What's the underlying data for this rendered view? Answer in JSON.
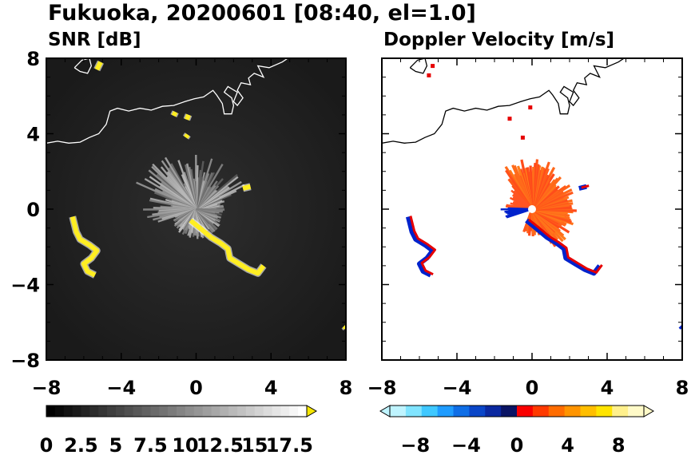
{
  "figure": {
    "title": "Fukuoka, 20200601 [08:40, el=1.0]"
  },
  "chart_data": [
    {
      "type": "heatmap",
      "title": "SNR [dB]",
      "xlim": [
        -8,
        8
      ],
      "ylim": [
        -8,
        8
      ],
      "x_ticks": [
        -8,
        -4,
        0,
        4,
        8
      ],
      "y_ticks": [
        -8,
        -4,
        0,
        4,
        8
      ],
      "x_tick_labels": [
        "−8",
        "−4",
        "0",
        "4",
        "8"
      ],
      "y_tick_labels": [
        "8",
        "4",
        "0",
        "−4",
        "−8"
      ],
      "background_color": "#222222",
      "echo_color": "#ffee22",
      "colorbar": {
        "min": 0,
        "max": 18.75,
        "extend": "max",
        "tick_values": [
          0,
          2.5,
          5,
          7.5,
          10,
          12.5,
          15,
          17.5
        ],
        "tick_labels": [
          "0",
          "2.5",
          "5",
          "7.5",
          "10",
          "12.5",
          "15",
          "17.5"
        ],
        "color_low": "#000000",
        "color_high": "#ffffff",
        "extend_color": "#f5e600"
      }
    },
    {
      "type": "heatmap",
      "title": "Doppler Velocity [m/s]",
      "xlim": [
        -8,
        8
      ],
      "ylim": [
        -8,
        8
      ],
      "x_ticks": [
        -8,
        -4,
        0,
        4,
        8
      ],
      "y_ticks": [
        -8,
        -4,
        0,
        4,
        8
      ],
      "x_tick_labels": [
        "−8",
        "−4",
        "0",
        "4",
        "8"
      ],
      "y_tick_labels": [
        "8",
        "4",
        "0",
        "−4",
        "−8"
      ],
      "background_color": "#ffffff",
      "approach_color": "#0022cc",
      "recede_color": "#ff5522",
      "colorbar": {
        "min": -10,
        "max": 10,
        "extend": "both",
        "tick_values": [
          -8,
          -4,
          0,
          4,
          8
        ],
        "tick_labels": [
          "−8",
          "−4",
          "0",
          "4",
          "8"
        ],
        "colors": [
          "#bff4ff",
          "#80e4ff",
          "#3fc8ff",
          "#1f9cff",
          "#0f6ee6",
          "#0a46c8",
          "#0a28a0",
          "#0a1464",
          "#fa0000",
          "#ff3a00",
          "#ff6c00",
          "#ff9400",
          "#ffbe00",
          "#ffe400",
          "#fff08c",
          "#fffac8"
        ]
      }
    }
  ]
}
